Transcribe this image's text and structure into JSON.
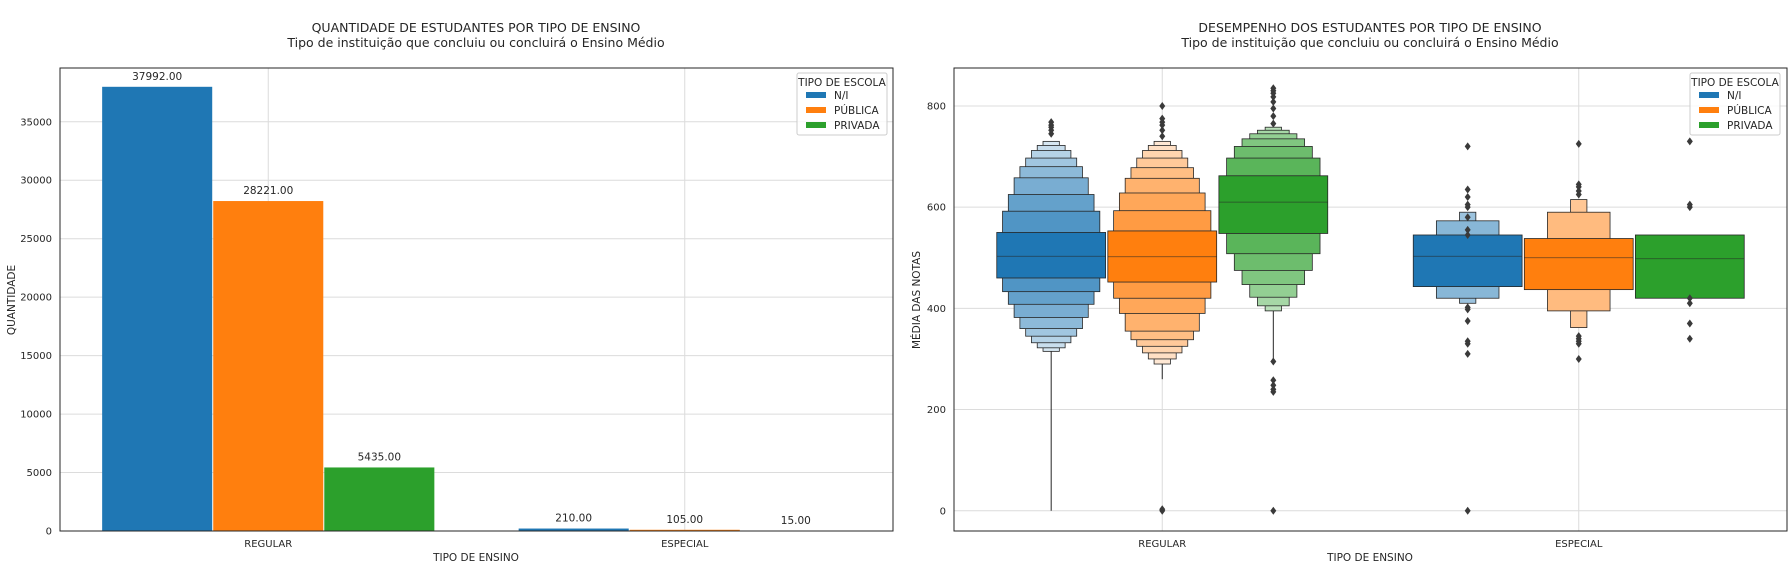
{
  "colors": {
    "N/I": "#1f77b4",
    "PÚBLICA": "#ff7f0e",
    "PRIVADA": "#2ca02c"
  },
  "chart_data": [
    {
      "type": "bar",
      "title": "QUANTIDADE DE ESTUDANTES POR TIPO DE ENSINO",
      "subtitle": "Tipo de instituição que concluiu ou concluirá o Ensino Médio",
      "xlabel": "TIPO DE ENSINO",
      "ylabel": "QUANTIDADE",
      "categories": [
        "REGULAR",
        "ESPECIAL"
      ],
      "series": [
        {
          "name": "N/I",
          "values": [
            37992,
            210
          ],
          "labels": [
            "37992.00",
            "210.00"
          ]
        },
        {
          "name": "PÚBLICA",
          "values": [
            28221,
            105
          ],
          "labels": [
            "28221.00",
            "105.00"
          ]
        },
        {
          "name": "PRIVADA",
          "values": [
            5435,
            15
          ],
          "labels": [
            "5435.00",
            "15.00"
          ]
        }
      ],
      "ylim": [
        0,
        39600
      ],
      "yticks": [
        0,
        5000,
        10000,
        15000,
        20000,
        25000,
        30000,
        35000
      ],
      "ytick_labels": [
        "0",
        "5000",
        "10000",
        "15000",
        "20000",
        "25000",
        "30000",
        "35000"
      ],
      "legend": {
        "title": "TIPO DE ESCOLA",
        "position": "top-right"
      },
      "grid": true
    },
    {
      "type": "boxen",
      "title": "DESEMPENHO DOS ESTUDANTES POR TIPO DE ENSINO",
      "subtitle": "Tipo de instituição que concluiu ou concluirá o Ensino Médio",
      "xlabel": "TIPO DE ENSINO",
      "ylabel": "MÉDIA DAS NOTAS",
      "categories": [
        "REGULAR",
        "ESPECIAL"
      ],
      "ylim": [
        -40,
        875
      ],
      "yticks": [
        0,
        200,
        400,
        600,
        800
      ],
      "ytick_labels": [
        "0",
        "200",
        "400",
        "600",
        "800"
      ],
      "legend": {
        "title": "TIPO DE ESCOLA",
        "position": "top-right"
      },
      "grid": true,
      "series": [
        {
          "name": "N/I",
          "groups": [
            {
              "median": 503,
              "boxes": [
                [
                  460,
                  550
                ],
                [
                  433,
                  592
                ],
                [
                  408,
                  625
                ],
                [
                  382,
                  658
                ],
                [
                  360,
                  680
                ],
                [
                  345,
                  697
                ],
                [
                  332,
                  712
                ],
                [
                  322,
                  722
                ],
                [
                  315,
                  730
                ]
              ],
              "whisker": [
                0,
                315
              ],
              "outliers": [
                745,
                752,
                758,
                762,
                768
              ]
            },
            {
              "median": 503,
              "boxes": [
                [
                  443,
                  545
                ],
                [
                  420,
                  573
                ],
                [
                  410,
                  590
                ]
              ],
              "whisker": null,
              "outliers": [
                0,
                310,
                330,
                335,
                375,
                398,
                402,
                545,
                555,
                580,
                600,
                605,
                620,
                635,
                720
              ]
            }
          ]
        },
        {
          "name": "PÚBLICA",
          "groups": [
            {
              "median": 502,
              "boxes": [
                [
                  452,
                  553
                ],
                [
                  420,
                  593
                ],
                [
                  390,
                  628
                ],
                [
                  355,
                  657
                ],
                [
                  338,
                  678
                ],
                [
                  325,
                  697
                ],
                [
                  312,
                  712
                ],
                [
                  300,
                  722
                ],
                [
                  290,
                  730
                ]
              ],
              "whisker": [
                260,
                290
              ],
              "outliers": [
                0,
                3,
                740,
                752,
                762,
                768,
                775,
                800
              ]
            },
            {
              "median": 500,
              "boxes": [
                [
                  437,
                  538
                ],
                [
                  395,
                  590
                ],
                [
                  362,
                  615
                ]
              ],
              "whisker": null,
              "outliers": [
                300,
                330,
                335,
                340,
                345,
                625,
                632,
                640,
                645,
                725
              ]
            }
          ]
        },
        {
          "name": "PRIVADA",
          "groups": [
            {
              "median": 610,
              "boxes": [
                [
                  548,
                  662
                ],
                [
                  508,
                  697
                ],
                [
                  475,
                  720
                ],
                [
                  447,
                  735
                ],
                [
                  422,
                  745
                ],
                [
                  405,
                  752
                ],
                [
                  395,
                  758
                ]
              ],
              "whisker": [
                300,
                395
              ],
              "outliers": [
                0,
                235,
                240,
                248,
                258,
                295,
                765,
                780,
                795,
                808,
                818,
                825,
                830,
                835
              ]
            },
            {
              "median": 498,
              "boxes": [
                [
                  420,
                  545
                ]
              ],
              "whisker": null,
              "outliers": [
                340,
                370,
                410,
                420,
                600,
                605,
                730
              ]
            }
          ]
        }
      ]
    }
  ]
}
